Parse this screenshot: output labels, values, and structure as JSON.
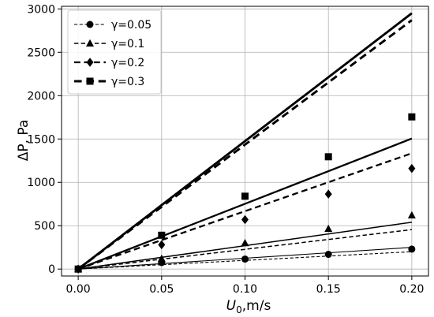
{
  "chart_data": {
    "type": "scatter",
    "title": "",
    "xlabel": {
      "main": "U",
      "sub": "0",
      "rest": ",m/s"
    },
    "ylabel": "ΔP, Pa",
    "xlim": [
      -0.01,
      0.21
    ],
    "ylim": [
      -80,
      3030
    ],
    "x_ticks": [
      0.0,
      0.05,
      0.1,
      0.15,
      0.2
    ],
    "x_tick_labels": [
      "0.00",
      "0.05",
      "0.10",
      "0.15",
      "0.20"
    ],
    "y_ticks": [
      0,
      500,
      1000,
      1500,
      2000,
      2500,
      3000
    ],
    "y_tick_labels": [
      "0",
      "500",
      "1000",
      "1500",
      "2000",
      "2500",
      "3000"
    ],
    "grid": true,
    "legend_position": "top-left",
    "series": [
      {
        "name": "γ=0.05",
        "marker": "circle",
        "line_style": "dashed",
        "line_width": 0.8,
        "x": [
          0.0,
          0.05,
          0.1,
          0.15,
          0.2
        ],
        "y": [
          0,
          75,
          115,
          170,
          230
        ],
        "model_solid_end": 250,
        "model_dashed_end": 200
      },
      {
        "name": "γ=0.1",
        "marker": "triangle",
        "line_style": "dashed",
        "line_width": 1.2,
        "x": [
          0.0,
          0.05,
          0.1,
          0.15,
          0.2
        ],
        "y": [
          0,
          120,
          300,
          465,
          620
        ],
        "model_solid_end": 540,
        "model_dashed_end": 455
      },
      {
        "name": "γ=0.2",
        "marker": "diamond",
        "line_style": "dashed",
        "line_width": 2.0,
        "x": [
          0.0,
          0.05,
          0.1,
          0.15,
          0.2
        ],
        "y": [
          0,
          280,
          570,
          865,
          1160
        ],
        "model_solid_end": 1505,
        "model_dashed_end": 1335
      },
      {
        "name": "γ=0.3",
        "marker": "square",
        "line_style": "dashed",
        "line_width": 2.6,
        "x": [
          0.0,
          0.05,
          0.1,
          0.15,
          0.2
        ],
        "y": [
          0,
          390,
          840,
          1295,
          1755
        ],
        "model_solid_end": 2950,
        "model_dashed_end": 2870
      }
    ]
  }
}
